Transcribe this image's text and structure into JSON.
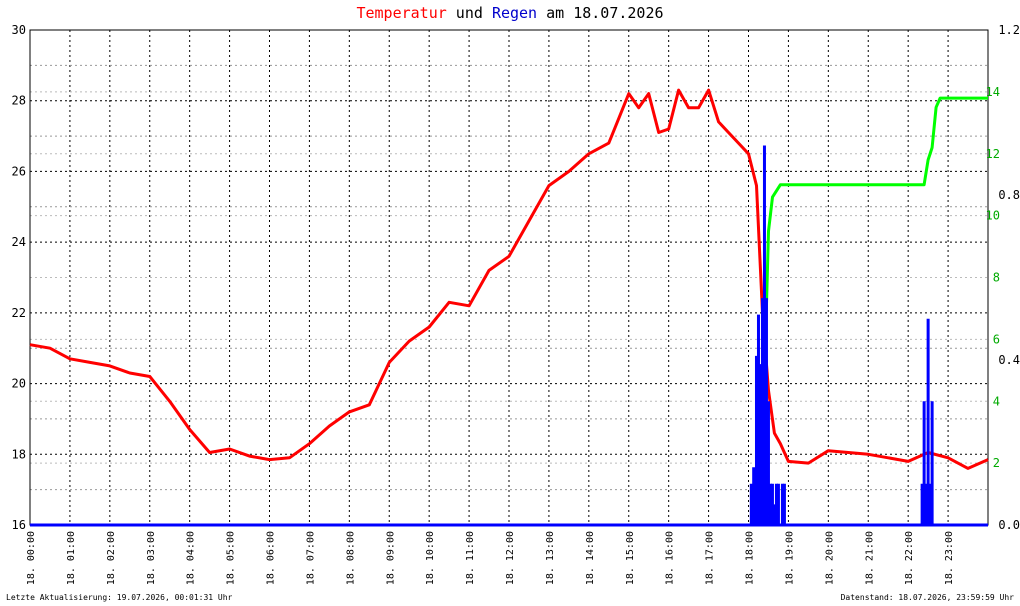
{
  "header": {
    "title_part1": "Temperatur",
    "title_part2": " und ",
    "title_part3": "Regen",
    "title_part4": " am 18.07.2026"
  },
  "footer": {
    "left": "Letzte Aktualisierung: 19.07.2026, 00:01:31 Uhr",
    "right": "Datenstand: 18.07.2026, 23:59:59 Uhr"
  },
  "colors": {
    "temperature": "#ff0000",
    "rain_rate": "#0000ff",
    "rain_sum": "#00ff00",
    "grid": "#000000",
    "axis_right": "#000000"
  },
  "chart_data": {
    "type": "line",
    "x_unit": "hour",
    "xlim": [
      0,
      24
    ],
    "x_tick_labels": [
      "18. 00:00",
      "18. 01:00",
      "18. 02:00",
      "18. 03:00",
      "18. 04:00",
      "18. 05:00",
      "18. 06:00",
      "18. 07:00",
      "18. 08:00",
      "18. 09:00",
      "18. 10:00",
      "18. 11:00",
      "18. 12:00",
      "18. 13:00",
      "18. 14:00",
      "18. 15:00",
      "18. 16:00",
      "18. 17:00",
      "18. 18:00",
      "18. 19:00",
      "18. 20:00",
      "18. 21:00",
      "18. 22:00",
      "18. 23:00"
    ],
    "y_left": {
      "ylim": [
        16,
        30
      ],
      "ticks": [
        "16",
        "18",
        "20",
        "22",
        "24",
        "26",
        "28",
        "30"
      ]
    },
    "y_right_rate": {
      "ylim": [
        0,
        1.2
      ],
      "ticks": [
        "0.0",
        "0.4",
        "0.8",
        "1.2"
      ]
    },
    "y_right_sum": {
      "ylim": [
        0,
        16
      ],
      "ticks": [
        "2",
        "4",
        "6",
        "8",
        "10",
        "12",
        "14"
      ]
    },
    "grid": true,
    "series": [
      {
        "axis": "left",
        "color_key": "temperature",
        "x": [
          0,
          0.5,
          1,
          1.5,
          2,
          2.5,
          3,
          3.5,
          4,
          4.5,
          5,
          5.5,
          6,
          6.5,
          7,
          7.5,
          8,
          8.5,
          9,
          9.5,
          10,
          10.5,
          11,
          11.5,
          12,
          12.5,
          13,
          13.5,
          14,
          14.5,
          15,
          15.25,
          15.5,
          15.75,
          16,
          16.25,
          16.5,
          16.75,
          17,
          17.25,
          17.5,
          17.75,
          18,
          18.2,
          18.35,
          18.5,
          18.65,
          18.8,
          19,
          19.5,
          20,
          20.5,
          21,
          21.5,
          22,
          22.5,
          23,
          23.5,
          24
        ],
        "values": [
          21.1,
          21.0,
          20.7,
          20.6,
          20.5,
          20.3,
          20.2,
          19.5,
          18.7,
          18.05,
          18.15,
          17.95,
          17.85,
          17.9,
          18.3,
          18.8,
          19.2,
          19.4,
          20.6,
          21.2,
          21.6,
          22.3,
          22.2,
          23.2,
          23.6,
          24.6,
          25.6,
          26.0,
          26.5,
          26.8,
          28.2,
          27.8,
          28.2,
          27.1,
          27.2,
          28.3,
          27.8,
          27.8,
          28.3,
          27.4,
          27.1,
          26.8,
          26.5,
          25.6,
          22.0,
          19.8,
          18.6,
          18.3,
          17.8,
          17.75,
          18.1,
          18.05,
          18.0,
          17.9,
          17.8,
          18.05,
          17.9,
          17.6,
          17.85
        ]
      },
      {
        "axis": "right_sum",
        "color_key": "rain_sum",
        "x": [
          18.3,
          18.4,
          18.5,
          18.6,
          18.8,
          19,
          20,
          21,
          22,
          22.4,
          22.5,
          22.6,
          22.7,
          22.8,
          23,
          24
        ],
        "values": [
          0,
          4.8,
          9.5,
          10.6,
          11,
          11,
          11,
          11,
          11,
          11,
          11.8,
          12.2,
          13.5,
          13.8,
          13.8,
          13.8
        ]
      },
      {
        "axis": "right_rate",
        "color_key": "rain_rate",
        "x": [
          18.07,
          18.13,
          18.2,
          18.25,
          18.3,
          18.35,
          18.4,
          18.45,
          18.5,
          18.55,
          18.6,
          18.65,
          18.7,
          18.75,
          18.85,
          18.9,
          22.35,
          22.4,
          22.45,
          22.5,
          22.55,
          22.6
        ],
        "values": [
          0.1,
          0.14,
          0.41,
          0.51,
          0.39,
          0.55,
          0.92,
          0.55,
          0.3,
          0.1,
          0.1,
          0.05,
          0.1,
          0.1,
          0.1,
          0.1,
          0.1,
          0.3,
          0.1,
          0.5,
          0.1,
          0.3
        ]
      }
    ]
  }
}
